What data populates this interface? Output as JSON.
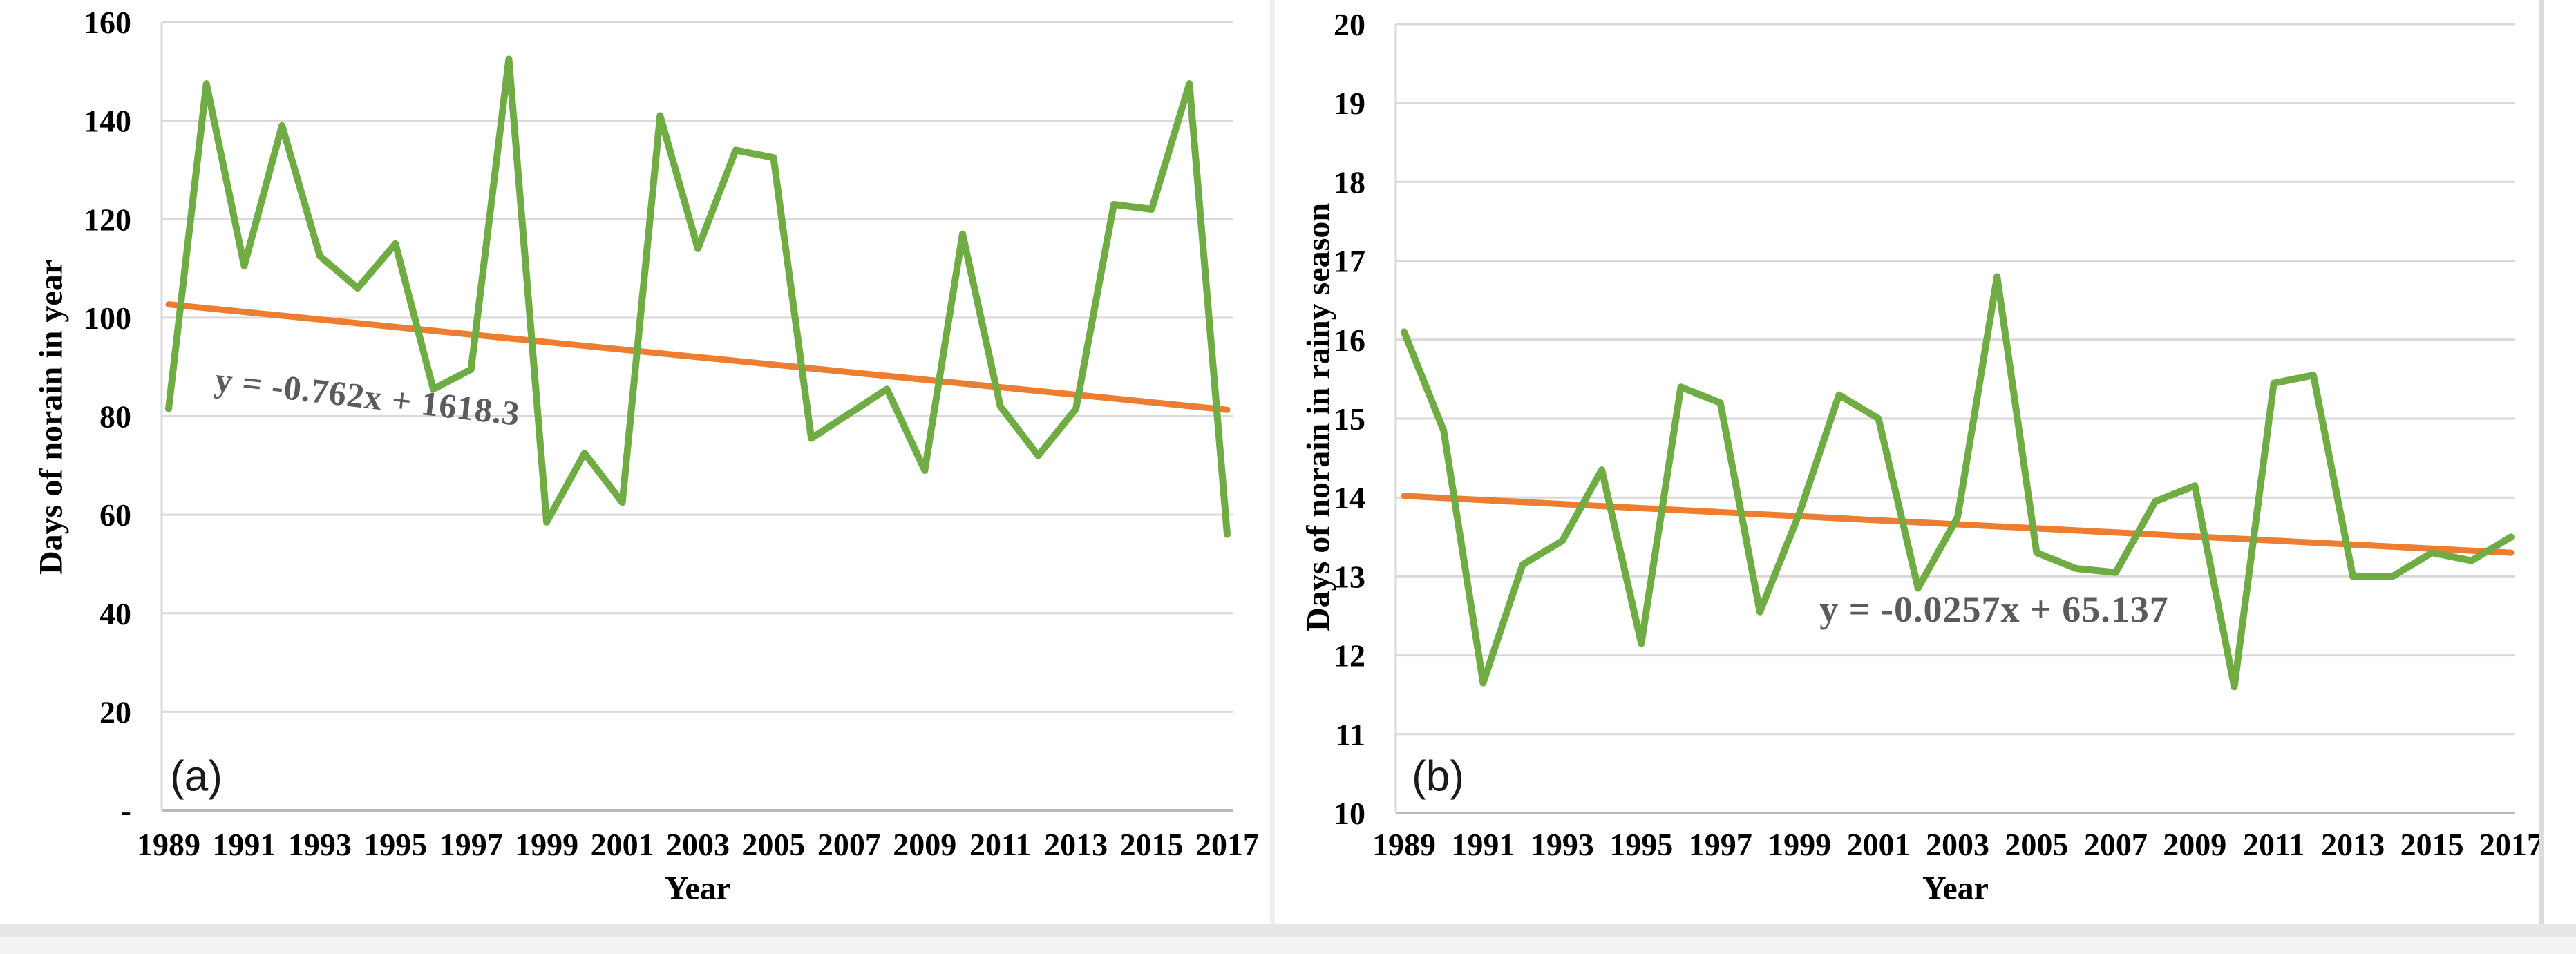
{
  "page": {
    "background": "#ffffff",
    "grid_color": "#d9d9d9",
    "axis_line_color": "#b9b9b9",
    "plot_border_color": "#d9d9d9",
    "equation_text_color": "#5b5b5b",
    "bottom_strip_colors": [
      "#e7e7e7",
      "#f3f3f3"
    ],
    "panel_divider_color": "#dcdcdc"
  },
  "chart_data": [
    {
      "id": "a",
      "type": "line",
      "panel_label": "(a)",
      "title": "",
      "ylabel": "Days of norain in year",
      "xlabel": "Year",
      "equation": "y = -0.762x + 1618.3",
      "ylim": [
        0,
        160
      ],
      "ytick_step": 20,
      "ytick_labels": [
        "160",
        "140",
        "120",
        "100",
        "80",
        "60",
        "40",
        "20",
        "-"
      ],
      "xtick_labels": [
        "1989",
        "1991",
        "1993",
        "1995",
        "1997",
        "1999",
        "2001",
        "2003",
        "2005",
        "2007",
        "2009",
        "2011",
        "2013",
        "2015",
        "2017"
      ],
      "grid": true,
      "legend_position": "none",
      "categories": [
        1989,
        1990,
        1991,
        1992,
        1993,
        1994,
        1995,
        1996,
        1997,
        1998,
        1999,
        2000,
        2001,
        2002,
        2003,
        2004,
        2005,
        2006,
        2007,
        2008,
        2009,
        2010,
        2011,
        2012,
        2013,
        2014,
        2015,
        2016,
        2017
      ],
      "values": [
        81.5,
        147.5,
        110.5,
        139,
        112.5,
        106,
        115,
        85.5,
        89.5,
        152.5,
        58.5,
        72.5,
        62.5,
        141,
        114,
        134,
        132.5,
        75.5,
        80.5,
        85.5,
        69,
        117,
        82,
        72,
        81.5,
        123,
        122,
        147.5,
        56
      ],
      "trend": {
        "type": "linear",
        "start_value": 102.7,
        "end_value": 81.3
      },
      "colors": {
        "series": "#6fac44",
        "trend": "#ed7d31"
      }
    },
    {
      "id": "b",
      "type": "line",
      "panel_label": "(b)",
      "title": "",
      "ylabel": "Days of norain in rainy season",
      "xlabel": "Year",
      "equation": "y = -0.0257x + 65.137",
      "ylim": [
        10,
        20
      ],
      "ytick_step": 1,
      "ytick_labels": [
        "20",
        "19",
        "18",
        "17",
        "16",
        "15",
        "14",
        "13",
        "12",
        "11",
        "10"
      ],
      "xtick_labels": [
        "1989",
        "1991",
        "1993",
        "1995",
        "1997",
        "1999",
        "2001",
        "2003",
        "2005",
        "2007",
        "2009",
        "2011",
        "2013",
        "2015",
        "2017"
      ],
      "grid": true,
      "legend_position": "none",
      "categories": [
        1989,
        1990,
        1991,
        1992,
        1993,
        1994,
        1995,
        1996,
        1997,
        1998,
        1999,
        2000,
        2001,
        2002,
        2003,
        2004,
        2005,
        2006,
        2007,
        2008,
        2009,
        2010,
        2011,
        2012,
        2013,
        2014,
        2015,
        2016,
        2017
      ],
      "values": [
        16.1,
        14.85,
        11.65,
        13.15,
        13.45,
        14.35,
        12.15,
        15.4,
        15.2,
        12.55,
        13.8,
        15.3,
        15.0,
        12.85,
        13.75,
        16.8,
        13.3,
        13.1,
        13.05,
        13.95,
        14.15,
        11.6,
        15.45,
        15.55,
        13.0,
        13.0,
        13.3,
        13.2,
        13.5
      ],
      "trend": {
        "type": "linear",
        "start_value": 14.02,
        "end_value": 13.3
      },
      "colors": {
        "series": "#6fac44",
        "trend": "#ed7d31"
      }
    }
  ]
}
